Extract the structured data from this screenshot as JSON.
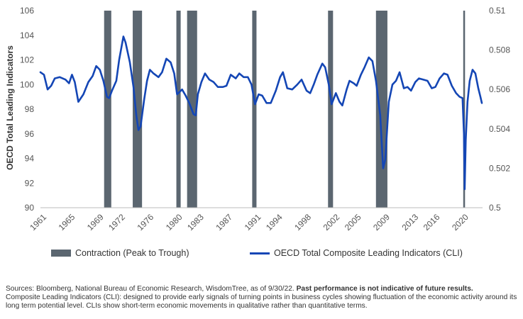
{
  "chart_data": {
    "type": "line",
    "ylabel": "OECD Total Leading Indicators",
    "ylim": [
      90,
      106
    ],
    "yticks": [
      "106",
      "104",
      "102",
      "100",
      "98",
      "96",
      "94",
      "92",
      "90"
    ],
    "y2lim": [
      0.5,
      0.51
    ],
    "y2ticks": [
      "0.51",
      "0.508",
      "0.506",
      "0.504",
      "0.502",
      "0.5"
    ],
    "xlim": [
      1961,
      2022.8
    ],
    "xticks": [
      "1961",
      "1965",
      "1969",
      "1972",
      "1976",
      "1980",
      "1983",
      "1987",
      "1991",
      "1994",
      "1998",
      "2002",
      "2005",
      "2009",
      "2013",
      "2016",
      "2020"
    ],
    "grid": false,
    "legend_position": "bottom",
    "legend": [
      "Contraction (Peak to Trough)",
      "OECD Total Composite Leading Indicators (CLI)"
    ],
    "recessions": [
      {
        "start": 1969.9,
        "end": 1970.9
      },
      {
        "start": 1973.9,
        "end": 1975.2
      },
      {
        "start": 1980.0,
        "end": 1980.6
      },
      {
        "start": 1981.5,
        "end": 1982.9
      },
      {
        "start": 1990.6,
        "end": 1991.2
      },
      {
        "start": 2001.2,
        "end": 2001.9
      },
      {
        "start": 2007.9,
        "end": 2009.5
      },
      {
        "start": 2020.1,
        "end": 2020.35
      }
    ],
    "series": [
      {
        "name": "OECD Total Composite Leading Indicators (CLI)",
        "color": "#1446b5",
        "points": [
          [
            1961.0,
            101.0
          ],
          [
            1961.5,
            100.8
          ],
          [
            1962.0,
            99.6
          ],
          [
            1962.5,
            99.9
          ],
          [
            1963.0,
            100.5
          ],
          [
            1963.7,
            100.6
          ],
          [
            1964.5,
            100.4
          ],
          [
            1965.0,
            100.1
          ],
          [
            1965.4,
            100.8
          ],
          [
            1965.8,
            100.2
          ],
          [
            1966.3,
            98.6
          ],
          [
            1967.0,
            99.2
          ],
          [
            1967.7,
            100.2
          ],
          [
            1968.3,
            100.7
          ],
          [
            1968.8,
            101.5
          ],
          [
            1969.3,
            101.2
          ],
          [
            1969.8,
            100.3
          ],
          [
            1970.3,
            99.0
          ],
          [
            1970.6,
            98.9
          ],
          [
            1971.0,
            99.5
          ],
          [
            1971.6,
            100.3
          ],
          [
            1972.0,
            102.0
          ],
          [
            1972.6,
            103.9
          ],
          [
            1972.9,
            103.4
          ],
          [
            1973.5,
            101.8
          ],
          [
            1974.0,
            99.8
          ],
          [
            1974.4,
            97.5
          ],
          [
            1974.7,
            96.3
          ],
          [
            1975.0,
            96.6
          ],
          [
            1975.5,
            98.8
          ],
          [
            1975.9,
            100.3
          ],
          [
            1976.3,
            101.2
          ],
          [
            1976.8,
            100.9
          ],
          [
            1977.5,
            100.6
          ],
          [
            1978.0,
            101.0
          ],
          [
            1978.6,
            102.1
          ],
          [
            1979.2,
            101.8
          ],
          [
            1979.7,
            100.9
          ],
          [
            1980.1,
            99.2
          ],
          [
            1980.8,
            99.6
          ],
          [
            1981.3,
            99.1
          ],
          [
            1981.8,
            98.5
          ],
          [
            1982.4,
            97.6
          ],
          [
            1982.7,
            97.5
          ],
          [
            1983.0,
            99.2
          ],
          [
            1983.5,
            100.2
          ],
          [
            1984.0,
            100.9
          ],
          [
            1984.6,
            100.4
          ],
          [
            1985.2,
            100.2
          ],
          [
            1985.8,
            99.8
          ],
          [
            1986.5,
            99.8
          ],
          [
            1987.0,
            99.9
          ],
          [
            1987.6,
            100.8
          ],
          [
            1988.3,
            100.5
          ],
          [
            1988.8,
            100.9
          ],
          [
            1989.4,
            100.6
          ],
          [
            1990.0,
            100.6
          ],
          [
            1990.5,
            100.0
          ],
          [
            1991.0,
            98.4
          ],
          [
            1991.5,
            99.2
          ],
          [
            1992.0,
            99.1
          ],
          [
            1992.6,
            98.5
          ],
          [
            1993.2,
            98.5
          ],
          [
            1993.9,
            99.5
          ],
          [
            1994.5,
            100.6
          ],
          [
            1994.9,
            101.0
          ],
          [
            1995.5,
            99.7
          ],
          [
            1996.2,
            99.6
          ],
          [
            1996.9,
            100.0
          ],
          [
            1997.5,
            100.4
          ],
          [
            1998.2,
            99.5
          ],
          [
            1998.7,
            99.3
          ],
          [
            1999.2,
            100.0
          ],
          [
            1999.7,
            100.8
          ],
          [
            2000.4,
            101.7
          ],
          [
            2000.8,
            101.4
          ],
          [
            2001.3,
            100.0
          ],
          [
            2001.7,
            98.4
          ],
          [
            2002.3,
            99.3
          ],
          [
            2002.8,
            98.6
          ],
          [
            2003.2,
            98.3
          ],
          [
            2003.8,
            99.6
          ],
          [
            2004.2,
            100.3
          ],
          [
            2004.8,
            100.1
          ],
          [
            2005.2,
            99.9
          ],
          [
            2005.8,
            100.8
          ],
          [
            2006.3,
            101.4
          ],
          [
            2006.9,
            102.2
          ],
          [
            2007.4,
            101.9
          ],
          [
            2007.9,
            100.3
          ],
          [
            2008.5,
            97.5
          ],
          [
            2008.9,
            93.2
          ],
          [
            2009.2,
            93.9
          ],
          [
            2009.7,
            98.6
          ],
          [
            2010.2,
            100.0
          ],
          [
            2010.7,
            100.3
          ],
          [
            2011.2,
            101.0
          ],
          [
            2011.8,
            99.7
          ],
          [
            2012.3,
            99.8
          ],
          [
            2012.8,
            99.5
          ],
          [
            2013.4,
            100.2
          ],
          [
            2013.9,
            100.5
          ],
          [
            2014.5,
            100.4
          ],
          [
            2015.1,
            100.3
          ],
          [
            2015.7,
            99.7
          ],
          [
            2016.2,
            99.8
          ],
          [
            2016.8,
            100.5
          ],
          [
            2017.4,
            100.9
          ],
          [
            2017.9,
            100.8
          ],
          [
            2018.5,
            99.9
          ],
          [
            2019.1,
            99.3
          ],
          [
            2019.6,
            99.0
          ],
          [
            2020.0,
            98.9
          ],
          [
            2020.2,
            96.0
          ],
          [
            2020.3,
            91.5
          ],
          [
            2020.45,
            95.5
          ],
          [
            2020.7,
            98.6
          ],
          [
            2021.0,
            100.3
          ],
          [
            2021.4,
            101.2
          ],
          [
            2021.8,
            100.9
          ],
          [
            2022.2,
            99.7
          ],
          [
            2022.5,
            99.0
          ],
          [
            2022.7,
            98.5
          ]
        ]
      }
    ]
  },
  "notes": {
    "sources": "Sources: Bloomberg, National Bureau of Economic Research, WisdomTree, as of 9/30/22.",
    "disclaimer": "Past performance is not indicative of future results.",
    "definition": "Composite Leading Indicators (CLI): designed to provide early signals of turning points in business cycles showing fluctuation of the economic activity around its long term potential level. CLIs show short-term economic movements in qualitative rather than quantitative terms."
  }
}
